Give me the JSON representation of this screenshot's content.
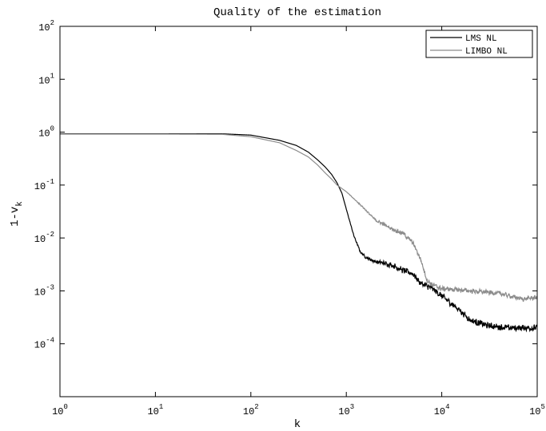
{
  "chart_data": {
    "type": "line",
    "title": "Quality of the estimation",
    "xlabel": "k",
    "ylabel": "1-v",
    "ylabel_subscript": "k",
    "x_scale": "log",
    "y_scale": "log",
    "xlim": [
      1,
      100000
    ],
    "ylim": [
      1e-05,
      100
    ],
    "x_ticks": [
      {
        "base": "10",
        "exp": "0"
      },
      {
        "base": "10",
        "exp": "1"
      },
      {
        "base": "10",
        "exp": "2"
      },
      {
        "base": "10",
        "exp": "3"
      },
      {
        "base": "10",
        "exp": "4"
      },
      {
        "base": "10",
        "exp": "5"
      }
    ],
    "y_ticks": [
      {
        "base": "10",
        "exp": "-4"
      },
      {
        "base": "10",
        "exp": "-3"
      },
      {
        "base": "10",
        "exp": "-2"
      },
      {
        "base": "10",
        "exp": "-1"
      },
      {
        "base": "10",
        "exp": "0"
      },
      {
        "base": "10",
        "exp": "1"
      },
      {
        "base": "10",
        "exp": "2"
      }
    ],
    "grid": false,
    "legend_position": "top-right",
    "series": [
      {
        "name": "LMS NL",
        "color": "#000000",
        "noise_decades": 0.07,
        "points": [
          [
            1,
            0.93
          ],
          [
            10,
            0.93
          ],
          [
            50,
            0.93
          ],
          [
            100,
            0.88
          ],
          [
            200,
            0.7
          ],
          [
            300,
            0.56
          ],
          [
            400,
            0.42
          ],
          [
            500,
            0.3
          ],
          [
            600,
            0.22
          ],
          [
            700,
            0.16
          ],
          [
            800,
            0.11
          ],
          [
            900,
            0.07
          ],
          [
            1000,
            0.035
          ],
          [
            1200,
            0.011
          ],
          [
            1400,
            0.0055
          ],
          [
            1600,
            0.0043
          ],
          [
            2000,
            0.0036
          ],
          [
            3000,
            0.0031
          ],
          [
            4000,
            0.0024
          ],
          [
            5000,
            0.0021
          ],
          [
            6000,
            0.0014
          ],
          [
            8000,
            0.0011
          ],
          [
            10000,
            0.0008
          ],
          [
            15000,
            0.00045
          ],
          [
            20000,
            0.00028
          ],
          [
            30000,
            0.00022
          ],
          [
            50000,
            0.0002
          ],
          [
            100000,
            0.0002
          ]
        ]
      },
      {
        "name": "LIMBO NL",
        "color": "#8c8c8c",
        "noise_decades": 0.05,
        "points": [
          [
            1,
            0.92
          ],
          [
            10,
            0.92
          ],
          [
            50,
            0.91
          ],
          [
            100,
            0.82
          ],
          [
            200,
            0.63
          ],
          [
            300,
            0.45
          ],
          [
            400,
            0.34
          ],
          [
            500,
            0.24
          ],
          [
            600,
            0.17
          ],
          [
            700,
            0.13
          ],
          [
            800,
            0.1
          ],
          [
            1000,
            0.075
          ],
          [
            1200,
            0.055
          ],
          [
            1500,
            0.038
          ],
          [
            2000,
            0.022
          ],
          [
            3000,
            0.015
          ],
          [
            4000,
            0.012
          ],
          [
            5000,
            0.008
          ],
          [
            6000,
            0.004
          ],
          [
            7000,
            0.0016
          ],
          [
            8000,
            0.0013
          ],
          [
            10000,
            0.0011
          ],
          [
            20000,
            0.001
          ],
          [
            40000,
            0.0009
          ],
          [
            70000,
            0.0007
          ],
          [
            100000,
            0.00075
          ]
        ]
      }
    ]
  }
}
